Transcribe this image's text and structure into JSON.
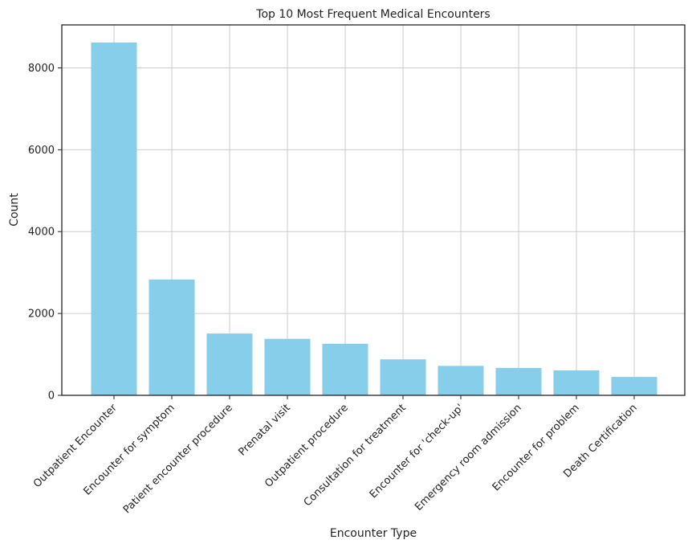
{
  "chart_data": {
    "type": "bar",
    "title": "Top 10 Most Frequent Medical Encounters",
    "xlabel": "Encounter Type",
    "ylabel": "Count",
    "categories": [
      "Outpatient Encounter",
      "Encounter for symptom",
      "Patient encounter procedure",
      "Prenatal visit",
      "Outpatient procedure",
      "Consultation for treatment",
      "Encounter for 'check-up'",
      "Emergency room admission",
      "Encounter for problem",
      "Death Certification"
    ],
    "values": [
      8620,
      2830,
      1510,
      1380,
      1260,
      880,
      720,
      670,
      610,
      450
    ],
    "ylim": [
      0,
      9050
    ],
    "yticks": [
      0,
      2000,
      4000,
      6000,
      8000
    ],
    "grid": true,
    "bar_color": "#87ceeb"
  }
}
